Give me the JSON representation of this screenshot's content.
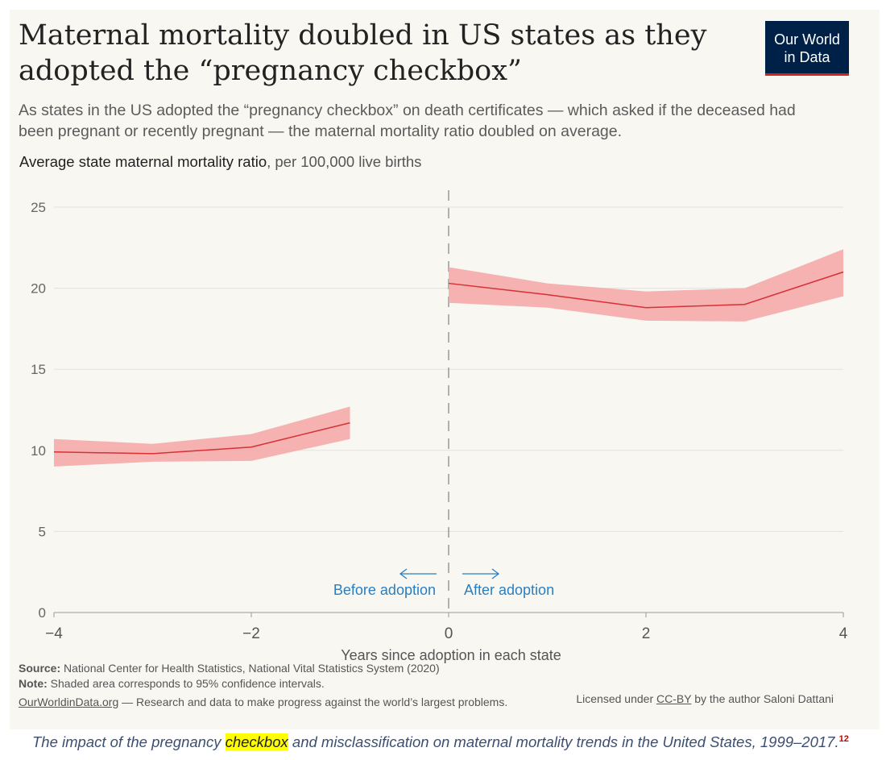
{
  "header": {
    "title": "Maternal mortality doubled in US states as they adopted the “pregnancy checkbox”",
    "subtitle": "As states in the US adopted the “pregnancy checkbox” on death certificates — which asked if the deceased had been pregnant or recently pregnant — the maternal mortality ratio doubled on average.",
    "logo_line1": "Our World",
    "logo_line2": "in Data"
  },
  "chart_data": {
    "type": "line",
    "title": "Average state maternal mortality ratio",
    "ylabel_unit": ", per 100,000 live births",
    "xlabel": "Years since adoption in each state",
    "xlim": [
      -4,
      4
    ],
    "ylim": [
      0,
      25
    ],
    "xticks": [
      -4,
      -2,
      0,
      2,
      4
    ],
    "xtick_labels": [
      "−4",
      "−2",
      "0",
      "2",
      "4"
    ],
    "yticks": [
      0,
      5,
      10,
      15,
      20,
      25
    ],
    "ytick_labels": [
      "0",
      "5",
      "10",
      "15",
      "20",
      "25"
    ],
    "grid": true,
    "color": "#d73035",
    "band_color": "#f4a6a6",
    "series": [
      {
        "name": "Before adoption",
        "x": [
          -4,
          -3,
          -2,
          -1
        ],
        "values": [
          9.9,
          9.8,
          10.2,
          11.7
        ],
        "lower": [
          9.0,
          9.3,
          9.35,
          10.7
        ],
        "upper": [
          10.7,
          10.4,
          11.0,
          12.7
        ]
      },
      {
        "name": "After adoption",
        "x": [
          0,
          1,
          2,
          3,
          4
        ],
        "values": [
          20.3,
          19.6,
          18.8,
          19.0,
          21.0
        ],
        "lower": [
          19.1,
          18.8,
          18.0,
          17.95,
          19.5
        ],
        "upper": [
          21.3,
          20.3,
          19.8,
          20.0,
          22.4
        ]
      }
    ],
    "annotations": {
      "before": "Before adoption",
      "after": "After adoption"
    },
    "annotation_color": "#2a7fc0"
  },
  "footer": {
    "source_label": "Source:",
    "source": "National Center for Health Statistics, National Vital Statistics System (2020)",
    "note_label": "Note:",
    "note": "Shaded area corresponds to 95% confidence intervals.",
    "owid_link": "OurWorldinData.org",
    "owid_text": " — Research and data to make progress against the world’s largest problems.",
    "license_prefix": "Licensed under ",
    "license_link": "CC-BY",
    "license_suffix": " by the author Saloni Dattani"
  },
  "caption": {
    "before": "The impact of the pregnancy ",
    "highlight": "checkbox",
    "after": " and misclassification on maternal mortality trends in the United States, 1999–2017.",
    "footnote": "12"
  }
}
